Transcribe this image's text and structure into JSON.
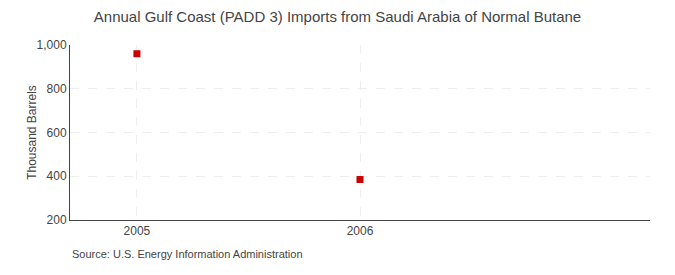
{
  "chart_data": {
    "type": "scatter",
    "title": "Annual Gulf Coast (PADD 3) Imports from Saudi Arabia of Normal Butane",
    "ylabel": "Thousand Barrels",
    "x": [
      2005,
      2006
    ],
    "values": [
      960,
      385
    ],
    "color": "#cc0000",
    "marker": "square",
    "xlim": [
      2004.7,
      2007.3
    ],
    "xticks": [
      2005,
      2006
    ],
    "ylim": [
      200,
      1000
    ],
    "yticks": [
      200,
      400,
      600,
      800,
      {
        "value": 1000,
        "label": "1,000"
      }
    ],
    "grid": true,
    "annotations": [
      "Source: U.S. Energy Information Administration"
    ]
  }
}
